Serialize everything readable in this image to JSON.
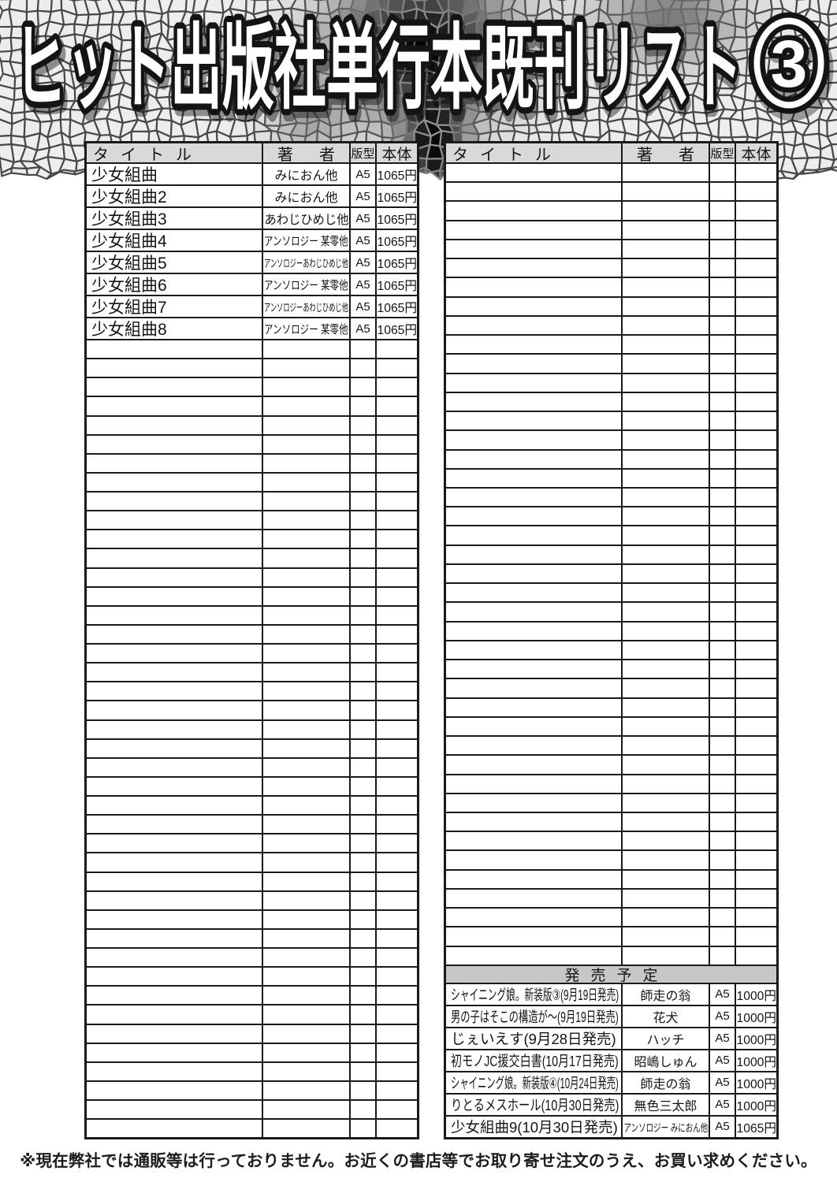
{
  "page_title": {
    "text": "ヒット出版社単行本既刊リスト",
    "badge": "3"
  },
  "table_columns": {
    "title": "タイトル",
    "author": "著者",
    "format": "版型",
    "price": "本体"
  },
  "left_table": {
    "books": [
      {
        "title": "少女組曲",
        "author": "みにおん他",
        "format": "A5",
        "price": "1065円"
      },
      {
        "title": "少女組曲2",
        "author": "みにおん他",
        "format": "A5",
        "price": "1065円"
      },
      {
        "title": "少女組曲3",
        "author": "あわじひめじ他",
        "format": "A5",
        "price": "1065円"
      },
      {
        "title": "少女組曲4",
        "author": "アンソロジー 某零他",
        "format": "A5",
        "price": "1065円"
      },
      {
        "title": "少女組曲5",
        "author": "アンソロジーあわじひめじ他",
        "format": "A5",
        "price": "1065円"
      },
      {
        "title": "少女組曲6",
        "author": "アンソロジー 某零他",
        "format": "A5",
        "price": "1065円"
      },
      {
        "title": "少女組曲7",
        "author": "アンソロジーあわじひめじ他",
        "format": "A5",
        "price": "1065円"
      },
      {
        "title": "少女組曲8",
        "author": "アンソロジー 某零他",
        "format": "A5",
        "price": "1065円"
      }
    ],
    "empty_row_count": 42
  },
  "right_table": {
    "books": [],
    "empty_row_count": 42,
    "release_section": {
      "header": "発売予定",
      "releases": [
        {
          "title": "シャイニング娘。新装版③(9月19日発売)",
          "author": "師走の翁",
          "format": "A5",
          "price": "1000円"
        },
        {
          "title": "男の子はそこの構造が～(9月19日発売)",
          "author": "花犬",
          "format": "A5",
          "price": "1000円"
        },
        {
          "title": "じぇいえす(9月28日発売)",
          "author": "ハッチ",
          "format": "A5",
          "price": "1000円"
        },
        {
          "title": "初モノJC援交白書(10月17日発売)",
          "author": "昭嶋しゅん",
          "format": "A5",
          "price": "1000円"
        },
        {
          "title": "シャイニング娘。新装版④(10月24日発売)",
          "author": "師走の翁",
          "format": "A5",
          "price": "1000円"
        },
        {
          "title": "りとるメスホール(10月30日発売)",
          "author": "無色三太郎",
          "format": "A5",
          "price": "1000円"
        },
        {
          "title": "少女組曲9(10月30日発売)",
          "author": "アンソロジー みにおん他",
          "format": "A5",
          "price": "1065円"
        }
      ]
    }
  },
  "footer_notice": "※現在弊社では通販等は行っておりません。お近くの書店等でお取り寄せ注文のうえ、お買い求めください。",
  "colors": {
    "table_border": "#1a1a1a",
    "header_fill": "#d9d9d9",
    "release_header_fill": "#c7c7c7",
    "texture_light_cell": "#ededed",
    "texture_dark_cell": "#0a0a0a",
    "title_fill": "#ffffff",
    "title_outline": "#141414"
  }
}
